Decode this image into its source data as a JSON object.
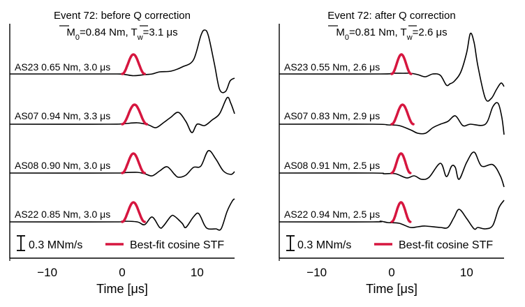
{
  "chart_data": [
    {
      "type": "line",
      "title_line1": "Event 72: before Q correction",
      "title_m_value": "=0.84 Nm, ",
      "title_t_value": "=3.1 μs",
      "xlabel": "Time [μs]",
      "xlim": [
        -15,
        15
      ],
      "xticks": [
        -10,
        0,
        10
      ],
      "traces": [
        {
          "station": "AS23",
          "label": "AS23  0.65 Nm, 3.0 μs",
          "tw": 3.0
        },
        {
          "station": "AS07",
          "label": "AS07  0.94 Nm, 3.3 μs",
          "tw": 3.3
        },
        {
          "station": "AS08",
          "label": "AS08  0.90 Nm, 3.0 μs",
          "tw": 3.0
        },
        {
          "station": "AS22",
          "label": "AS22  0.85 Nm, 3.0 μs",
          "tw": 3.0
        }
      ],
      "scalebar_label": "0.3 MNm/s",
      "legend_label": "Best-fit cosine STF"
    },
    {
      "type": "line",
      "title_line1": "Event 72: after Q correction",
      "title_m_value": "=0.81 Nm, ",
      "title_t_value": "=2.6 μs",
      "xlabel": "Time [μs]",
      "xlim": [
        -15,
        15
      ],
      "xticks": [
        -10,
        0,
        10
      ],
      "traces": [
        {
          "station": "AS23",
          "label": "AS23  0.55 Nm, 2.6 μs",
          "tw": 2.6
        },
        {
          "station": "AS07",
          "label": "AS07  0.83 Nm, 2.9 μs",
          "tw": 2.9
        },
        {
          "station": "AS08",
          "label": "AS08  0.91 Nm, 2.5 μs",
          "tw": 2.5
        },
        {
          "station": "AS22",
          "label": "AS22  0.94 Nm, 2.5 μs",
          "tw": 2.5
        }
      ],
      "scalebar_label": "0.3 MNm/s",
      "legend_label": "Best-fit cosine STF"
    }
  ],
  "colors": {
    "waveform": "#000000",
    "stf": "#d6163f"
  },
  "symbols": {
    "m0": "M",
    "m0_sub": "0",
    "tw": "T",
    "tw_sub": "w"
  }
}
